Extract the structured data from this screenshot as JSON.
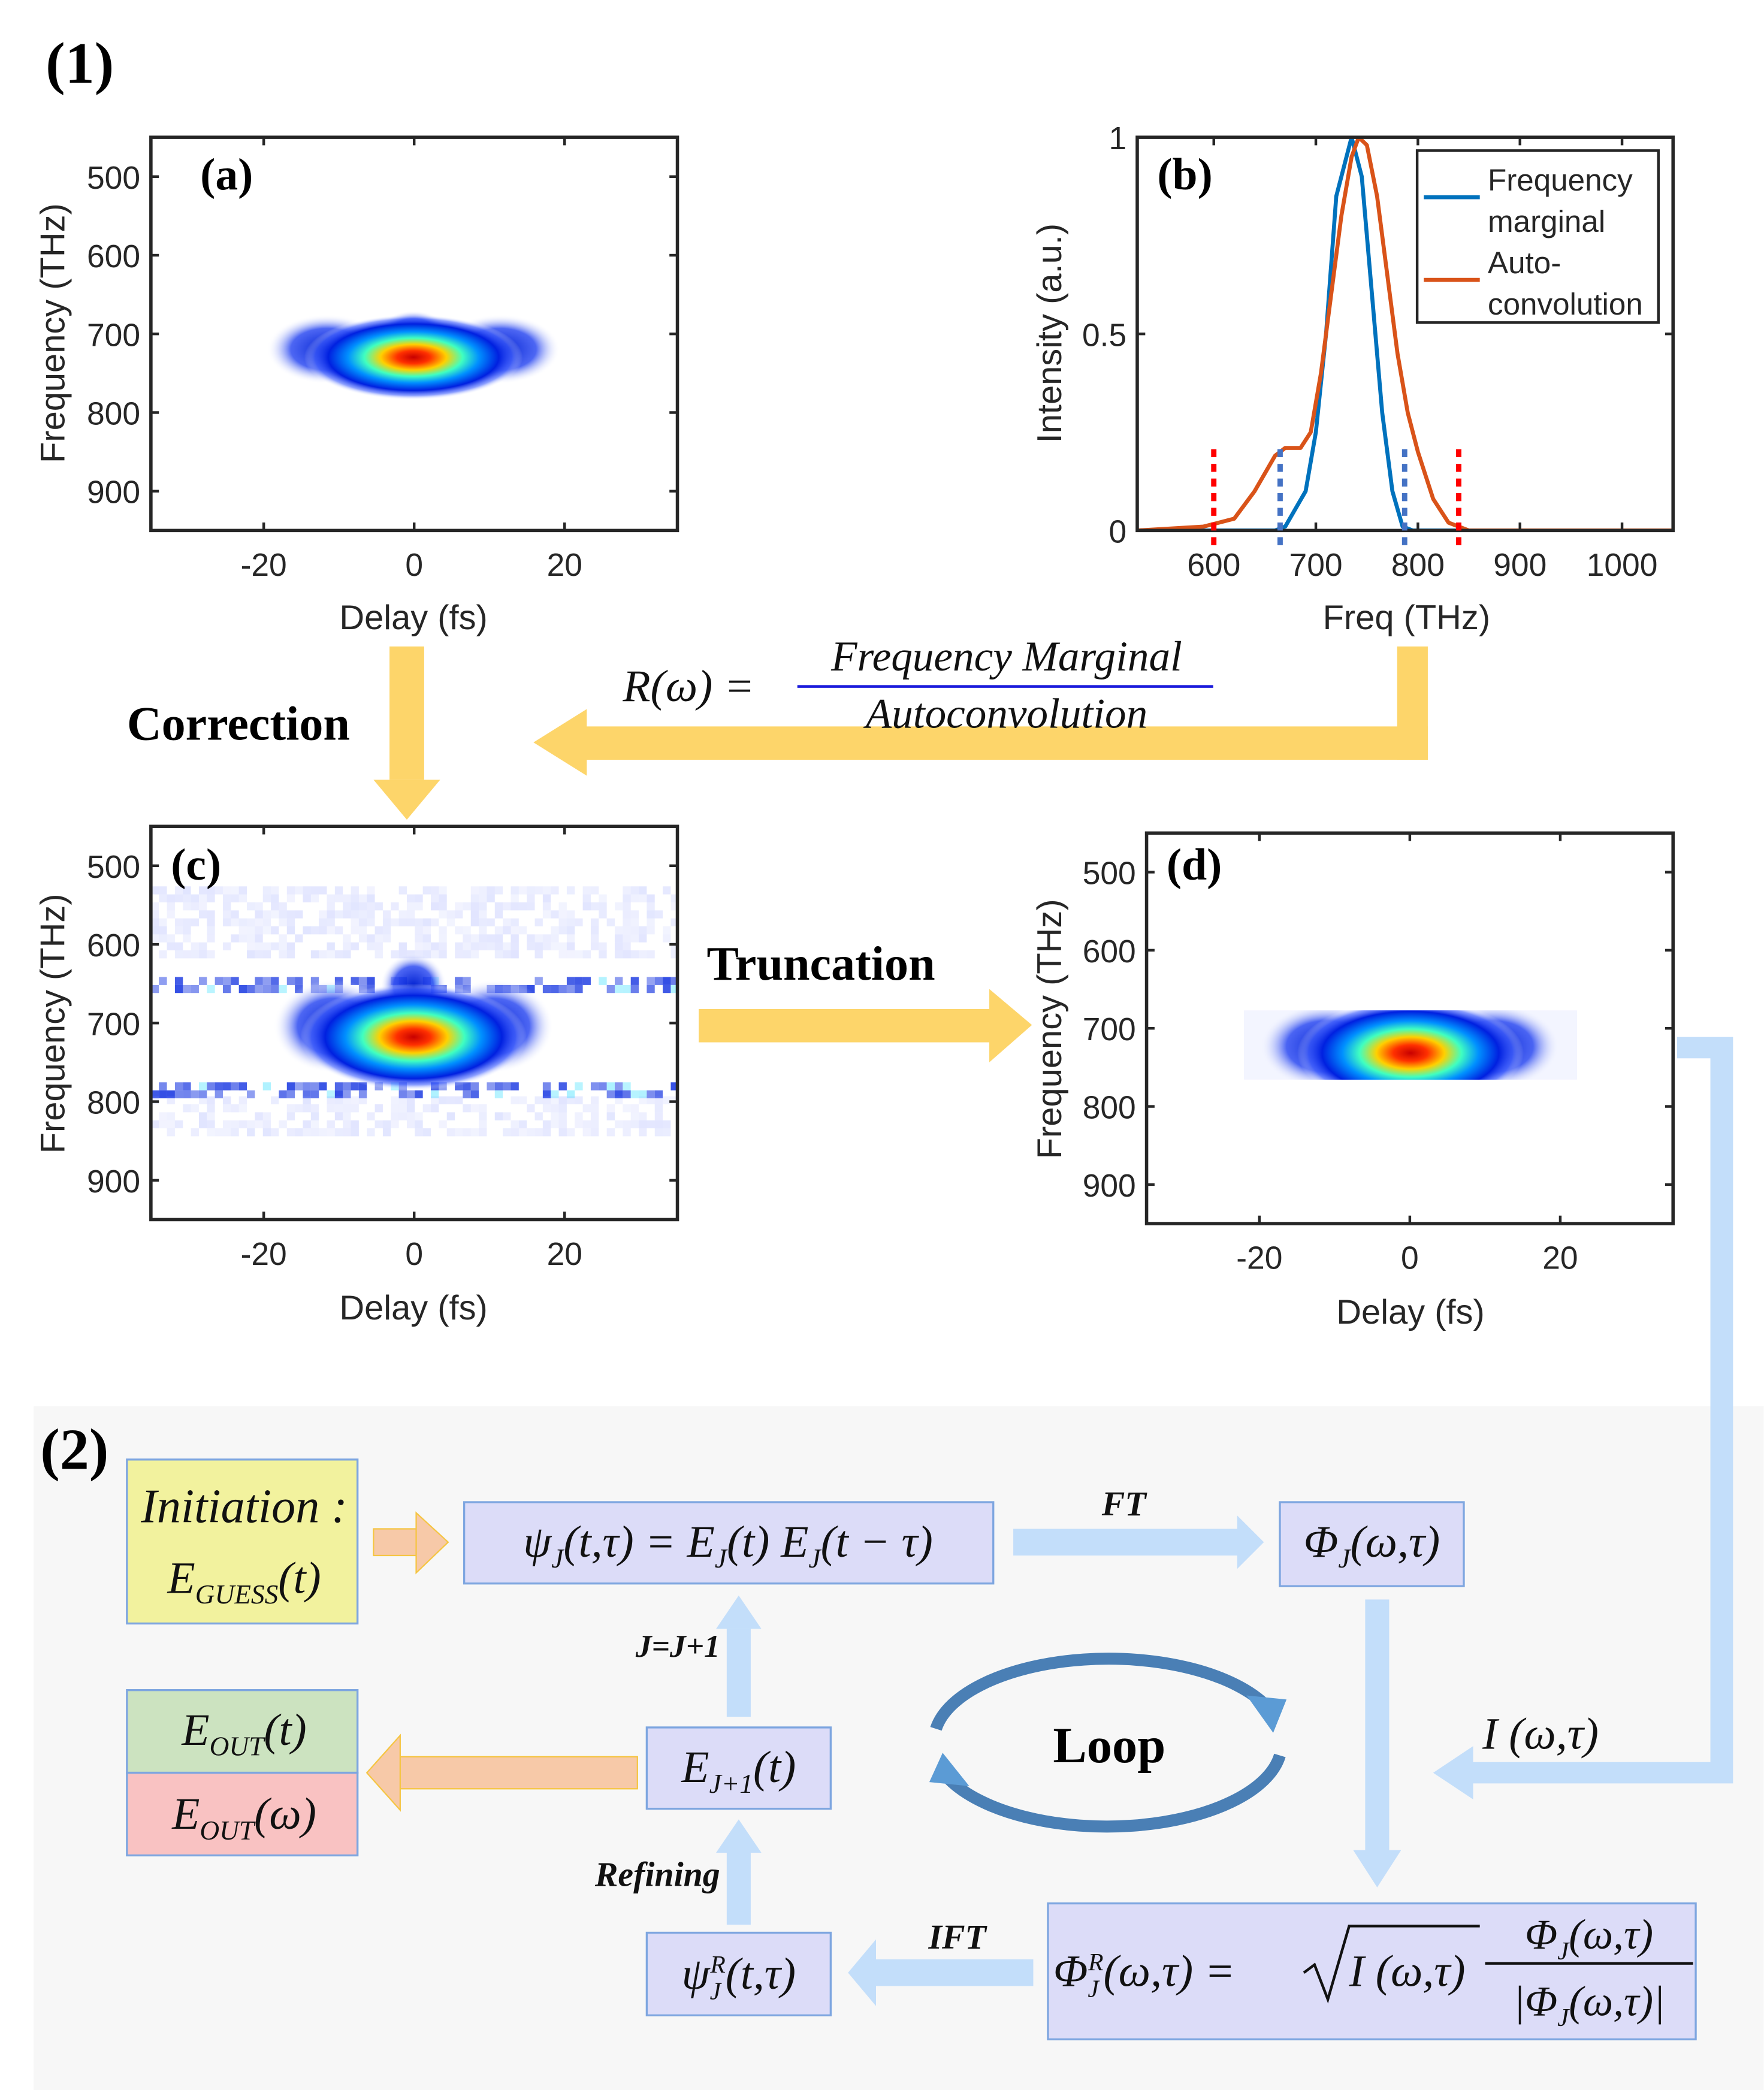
{
  "part1_label": "(1)",
  "part2_label": "(2)",
  "panels": {
    "a": {
      "label": "(a)",
      "xlabel": "Delay (fs)",
      "ylabel": "Frequency (THz)",
      "xticks": [
        "-20",
        "0",
        "20"
      ],
      "yticks": [
        "500",
        "600",
        "700",
        "800",
        "900"
      ]
    },
    "b": {
      "label": "(b)",
      "xlabel": "Freq (THz)",
      "ylabel": "Intensity (a.u.)",
      "xticks": [
        "600",
        "700",
        "800",
        "900",
        "1000"
      ],
      "yticks": [
        "0",
        "0.5",
        "1"
      ]
    },
    "c": {
      "label": "(c)",
      "xlabel": "Delay (fs)",
      "ylabel": "Frequency (THz)",
      "xticks": [
        "-20",
        "0",
        "20"
      ],
      "yticks": [
        "500",
        "600",
        "700",
        "800",
        "900"
      ]
    },
    "d": {
      "label": "(d)",
      "xlabel": "Delay (fs)",
      "ylabel": "Frequency (THz)",
      "xticks": [
        "-20",
        "0",
        "20"
      ],
      "yticks": [
        "500",
        "600",
        "700",
        "800",
        "900"
      ]
    }
  },
  "chart_data": [
    {
      "panel": "a",
      "type": "heatmap",
      "xlim": [
        -35,
        35
      ],
      "ylim": [
        450,
        950
      ],
      "x_ticks": [
        -20,
        0,
        20
      ],
      "y_ticks": [
        500,
        600,
        700,
        800,
        900
      ],
      "peak": {
        "delay": 0,
        "freq": 735
      },
      "colormap": "jet"
    },
    {
      "panel": "b",
      "type": "line",
      "xlim": [
        525,
        1050
      ],
      "ylim": [
        0,
        1
      ],
      "x_ticks": [
        600,
        700,
        800,
        900,
        1000
      ],
      "y_ticks": [
        0,
        0.5,
        1
      ],
      "legend": "top-right",
      "series": [
        {
          "name": "Frequency marginal",
          "color": "#0072bd",
          "x": [
            525,
            660,
            670,
            690,
            700,
            710,
            720,
            735,
            745,
            755,
            765,
            775,
            785,
            795,
            1050
          ],
          "y": [
            0,
            0,
            0.01,
            0.1,
            0.25,
            0.5,
            0.85,
            1,
            0.9,
            0.6,
            0.3,
            0.1,
            0.01,
            0,
            0
          ]
        },
        {
          "name": "Auto-convolution",
          "color": "#d95319",
          "x": [
            525,
            590,
            620,
            640,
            660,
            670,
            685,
            695,
            705,
            715,
            725,
            735,
            742,
            750,
            760,
            770,
            780,
            790,
            800,
            815,
            830,
            850,
            1050
          ],
          "y": [
            0,
            0.01,
            0.03,
            0.1,
            0.19,
            0.21,
            0.21,
            0.25,
            0.4,
            0.6,
            0.8,
            0.95,
            1,
            0.98,
            0.85,
            0.65,
            0.45,
            0.3,
            0.2,
            0.08,
            0.02,
            0,
            0
          ]
        }
      ],
      "vlines": [
        {
          "x": 600,
          "color": "#ff0000"
        },
        {
          "x": 840,
          "color": "#ff0000"
        },
        {
          "x": 665,
          "color": "#4472c4"
        },
        {
          "x": 787,
          "color": "#4472c4"
        }
      ],
      "legend_lines": [
        [
          "Frequency",
          "marginal"
        ],
        [
          "Auto-",
          "convolution"
        ]
      ]
    },
    {
      "panel": "c",
      "type": "heatmap",
      "xlim": [
        -35,
        35
      ],
      "ylim": [
        450,
        950
      ],
      "x_ticks": [
        -20,
        0,
        20
      ],
      "y_ticks": [
        500,
        600,
        700,
        800,
        900
      ],
      "peak": {
        "delay": 0,
        "freq": 745
      },
      "colormap": "jet"
    },
    {
      "panel": "d",
      "type": "heatmap",
      "xlim": [
        -35,
        35
      ],
      "ylim": [
        450,
        950
      ],
      "x_ticks": [
        -20,
        0,
        20
      ],
      "y_ticks": [
        500,
        600,
        700,
        800,
        900
      ],
      "peak": {
        "delay": 0,
        "freq": 745
      },
      "colormap": "jet"
    }
  ],
  "flow1": {
    "correction": "Correction",
    "truncation": "Truncation",
    "ratio_lhs": "R(ω) =",
    "ratio_num": "Frequency Marginal",
    "ratio_den": "Autoconvolution",
    "arrow_color": "#fdd56a",
    "formula_color": "#1a1adb"
  },
  "flow2": {
    "initiation": "Initiation :",
    "e_guess": [
      {
        "t": "E"
      },
      {
        "sub": "GUESS"
      },
      {
        "t": "(t)"
      }
    ],
    "psi": [
      {
        "t": "ψ"
      },
      {
        "sub": "J"
      },
      {
        "t": "(t,τ) = E"
      },
      {
        "sub": "J"
      },
      {
        "t": "(t) E"
      },
      {
        "sub": "J"
      },
      {
        "t": "(t − τ)"
      }
    ],
    "phi": [
      {
        "t": "Φ"
      },
      {
        "sub": "J"
      },
      {
        "t": "(ω,τ)"
      }
    ],
    "ft": "FT",
    "ift": "IFT",
    "j_inc": "J=J+1",
    "refining": "Refining",
    "loop": "Loop",
    "intensity": "I (ω,τ)",
    "e_next": [
      {
        "t": "E"
      },
      {
        "sub": "J+1"
      },
      {
        "t": "(t)"
      }
    ],
    "e_out_t": [
      {
        "t": "E"
      },
      {
        "sub": "OUT"
      },
      {
        "t": "(t)"
      }
    ],
    "e_out_w": [
      {
        "t": "E"
      },
      {
        "sub": "OUT"
      },
      {
        "t": "(ω)"
      }
    ],
    "psi_r": [
      {
        "t": "ψ"
      },
      {
        "subsup": [
          "J",
          "R"
        ]
      },
      {
        "t": "(t,τ)"
      }
    ],
    "phi_r_lhs": [
      {
        "t": "Φ"
      },
      {
        "subsup": [
          "J",
          "R"
        ]
      },
      {
        "t": "(ω,τ) ="
      }
    ],
    "phi_r_sqrt": "I (ω,τ)",
    "phi_r_num": [
      {
        "t": "Φ"
      },
      {
        "sub": "J"
      },
      {
        "t": "(ω,τ)"
      }
    ],
    "phi_r_den": [
      {
        "t": "|Φ"
      },
      {
        "sub": "J"
      },
      {
        "t": "(ω,τ)|"
      }
    ],
    "colors": {
      "init": "#f2f29e",
      "box": "#dcdcf8",
      "out_t": "#cce3c0",
      "out_w": "#f9c2c2",
      "blue_arrow": "#c3defa",
      "orange_arrow": "#f7c9a8",
      "loop": "#4a7fb5",
      "bg": "#f7f7f7"
    }
  }
}
